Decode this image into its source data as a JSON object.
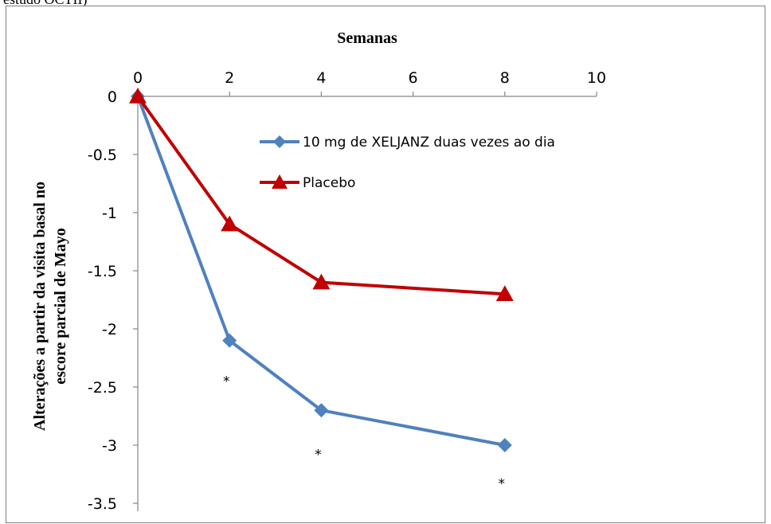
{
  "page": {
    "caption": "estudo OCTII)"
  },
  "chart_data": {
    "type": "line",
    "title": "Semanas",
    "xlabel": "",
    "ylabel": [
      "Alterações a partir da visita basal no",
      "escore parcial de Mayo"
    ],
    "x_axis_position": "top",
    "xlim": [
      0,
      10
    ],
    "xticks": [
      0,
      2,
      4,
      6,
      8,
      10
    ],
    "ylim": [
      -3.5,
      0
    ],
    "yticks": [
      0,
      -0.5,
      -1,
      -1.5,
      -2,
      -2.5,
      -3,
      -3.5
    ],
    "ytick_labels": [
      "0",
      "-0.5",
      "-1",
      "-1.5",
      "-2",
      "-2.5",
      "-3",
      "-3.5"
    ],
    "grid": false,
    "legend_position": "top-right",
    "series": [
      {
        "name": "10 mg de XELJANZ duas vezes ao dia",
        "color": "#4f81bd",
        "marker": "diamond",
        "x": [
          0,
          2,
          4,
          8
        ],
        "y": [
          0,
          -2.1,
          -2.7,
          -3.0
        ]
      },
      {
        "name": "Placebo",
        "color": "#c00000",
        "marker": "triangle",
        "x": [
          0,
          2,
          4,
          8
        ],
        "y": [
          0,
          -1.1,
          -1.6,
          -1.7
        ]
      }
    ],
    "annotations": [
      {
        "text": "*",
        "x": 2,
        "y": -2.42
      },
      {
        "text": "*",
        "x": 4,
        "y": -3.05
      },
      {
        "text": "*",
        "x": 8,
        "y": -3.3
      }
    ]
  }
}
